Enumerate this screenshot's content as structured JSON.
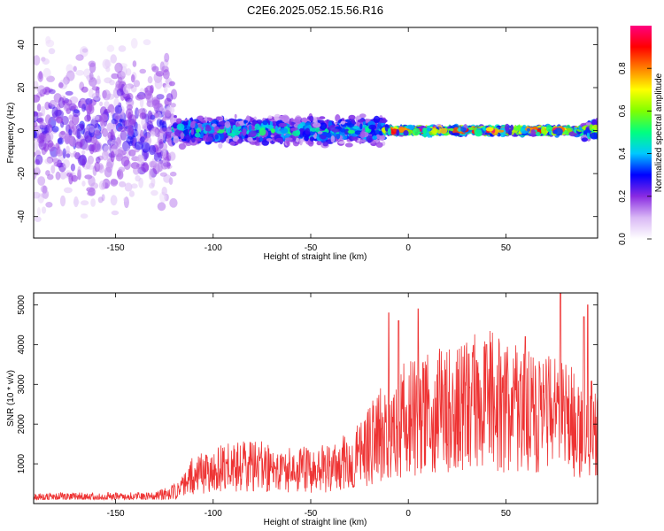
{
  "title": "C2E6.2025.052.15.56.R16",
  "chart_data": [
    {
      "type": "heatmap",
      "xlabel": "Height of straight line (km)",
      "ylabel": "Frequency (Hz)",
      "xlim": [
        -192,
        97
      ],
      "ylim": [
        -50,
        48
      ],
      "xticks": [
        -150,
        -100,
        -50,
        0,
        50
      ],
      "yticks": [
        -40,
        -20,
        0,
        20,
        40
      ],
      "colorbar": {
        "label": "Normalized spectral amplitude",
        "range": [
          0,
          1
        ],
        "ticks": [
          0.0,
          0.2,
          0.4,
          0.6,
          0.8
        ],
        "colors": [
          "#ffffff",
          "#d9b8f5",
          "#8a2be2",
          "#0000ff",
          "#00c8ff",
          "#00ff80",
          "#80ff00",
          "#ffff00",
          "#ff8000",
          "#ff0000",
          "#ff0080"
        ]
      },
      "regions": [
        {
          "x": [
            -192,
            -120
          ],
          "freq_spread_hz": 48,
          "amplitude": 0.25
        },
        {
          "x": [
            -120,
            -12
          ],
          "freq_spread_hz": 8,
          "amplitude": 0.45
        },
        {
          "x": [
            -12,
            90
          ],
          "freq_spread_hz": 2,
          "amplitude": 0.85
        },
        {
          "x": [
            90,
            97
          ],
          "freq_spread_hz": 6,
          "amplitude": 0.6
        }
      ]
    },
    {
      "type": "line",
      "xlabel": "Height of straight line (km)",
      "ylabel": "SNR (10 * v/v)",
      "xlim": [
        -192,
        97
      ],
      "ylim": [
        0,
        5300
      ],
      "xticks": [
        -150,
        -100,
        -50,
        0,
        50
      ],
      "yticks": [
        1000,
        2000,
        3000,
        4000,
        5000
      ],
      "color": "#ee3333",
      "envelope": [
        {
          "x": -192,
          "y": 200
        },
        {
          "x": -130,
          "y": 220
        },
        {
          "x": -118,
          "y": 400
        },
        {
          "x": -110,
          "y": 900
        },
        {
          "x": -100,
          "y": 1100
        },
        {
          "x": -80,
          "y": 1200
        },
        {
          "x": -60,
          "y": 1050
        },
        {
          "x": -40,
          "y": 1100
        },
        {
          "x": -25,
          "y": 1500
        },
        {
          "x": -15,
          "y": 2200
        },
        {
          "x": -5,
          "y": 2600
        },
        {
          "x": 5,
          "y": 2700
        },
        {
          "x": 15,
          "y": 2900
        },
        {
          "x": 25,
          "y": 3000
        },
        {
          "x": 40,
          "y": 3300
        },
        {
          "x": 50,
          "y": 3100
        },
        {
          "x": 60,
          "y": 2900
        },
        {
          "x": 70,
          "y": 2800
        },
        {
          "x": 80,
          "y": 2700
        },
        {
          "x": 90,
          "y": 2300
        },
        {
          "x": 97,
          "y": 2400
        }
      ],
      "peaks": [
        {
          "x": 78,
          "y": 5300
        },
        {
          "x": 92,
          "y": 5000
        },
        {
          "x": 5,
          "y": 4900
        },
        {
          "x": -10,
          "y": 4800
        },
        {
          "x": 90,
          "y": 4700
        },
        {
          "x": -5,
          "y": 4600
        },
        {
          "x": 60,
          "y": 4200
        },
        {
          "x": 40,
          "y": 4000
        },
        {
          "x": 35,
          "y": 3600
        }
      ]
    }
  ]
}
